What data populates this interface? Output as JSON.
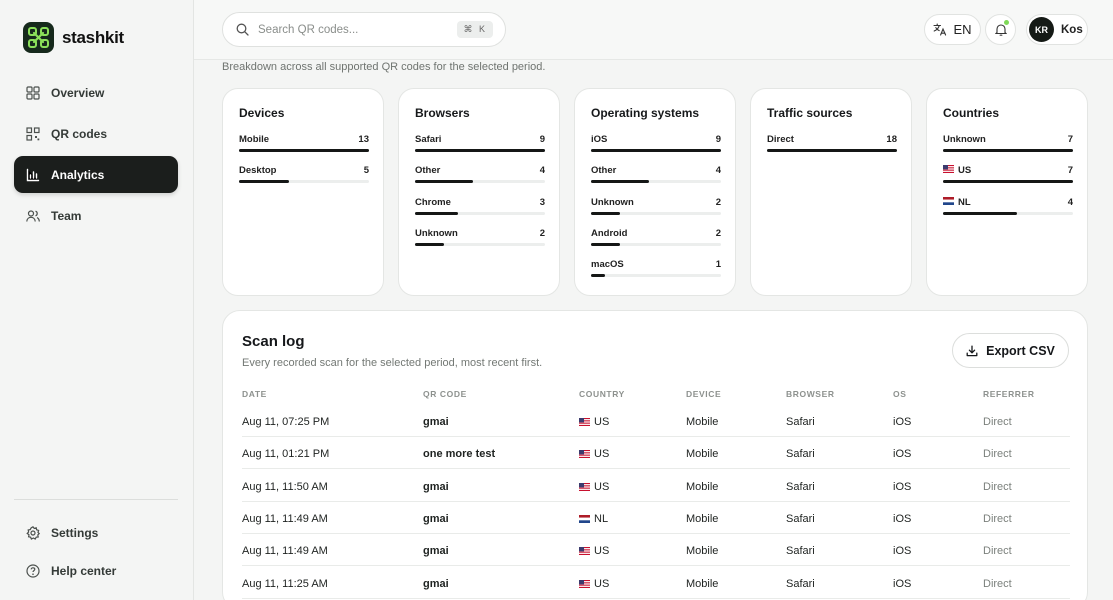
{
  "brand": {
    "name": "stashkit"
  },
  "sidebar": {
    "items": [
      {
        "label": "Overview",
        "icon": "grid-icon",
        "active": false
      },
      {
        "label": "QR codes",
        "icon": "qr-icon",
        "active": false
      },
      {
        "label": "Analytics",
        "icon": "bar-chart-icon",
        "active": true
      },
      {
        "label": "Team",
        "icon": "users-icon",
        "active": false
      }
    ],
    "bottom": [
      {
        "label": "Settings",
        "icon": "gear-icon"
      },
      {
        "label": "Help center",
        "icon": "help-icon"
      }
    ]
  },
  "topbar": {
    "search_placeholder": "Search QR codes...",
    "shortcut": "⌘ K",
    "language": "EN",
    "user_initials": "KR",
    "user_name": "Kos"
  },
  "breakdown": {
    "subtitle": "Breakdown across all supported QR codes for the selected period.",
    "cards": [
      {
        "title": "Devices",
        "items": [
          {
            "label": "Mobile",
            "value": 13
          },
          {
            "label": "Desktop",
            "value": 5
          }
        ]
      },
      {
        "title": "Browsers",
        "items": [
          {
            "label": "Safari",
            "value": 9
          },
          {
            "label": "Other",
            "value": 4
          },
          {
            "label": "Chrome",
            "value": 3
          },
          {
            "label": "Unknown",
            "value": 2
          }
        ]
      },
      {
        "title": "Operating systems",
        "items": [
          {
            "label": "iOS",
            "value": 9
          },
          {
            "label": "Other",
            "value": 4
          },
          {
            "label": "Unknown",
            "value": 2
          },
          {
            "label": "Android",
            "value": 2
          },
          {
            "label": "macOS",
            "value": 1
          }
        ]
      },
      {
        "title": "Traffic sources",
        "items": [
          {
            "label": "Direct",
            "value": 18
          }
        ]
      },
      {
        "title": "Countries",
        "items": [
          {
            "label": "Unknown",
            "value": 7,
            "flag": ""
          },
          {
            "label": "US",
            "value": 7,
            "flag": "us"
          },
          {
            "label": "NL",
            "value": 4,
            "flag": "nl"
          }
        ]
      }
    ]
  },
  "scan_log": {
    "title": "Scan log",
    "description": "Every recorded scan for the selected period, most recent first.",
    "export_label": "Export CSV",
    "columns": [
      "DATE",
      "QR CODE",
      "COUNTRY",
      "DEVICE",
      "BROWSER",
      "OS",
      "REFERRER"
    ],
    "rows": [
      {
        "date": "Aug 11, 07:25 PM",
        "qr": "gmai",
        "country": "US",
        "flag": "us",
        "device": "Mobile",
        "browser": "Safari",
        "os": "iOS",
        "referrer": "Direct"
      },
      {
        "date": "Aug 11, 01:21 PM",
        "qr": "one more test",
        "country": "US",
        "flag": "us",
        "device": "Mobile",
        "browser": "Safari",
        "os": "iOS",
        "referrer": "Direct"
      },
      {
        "date": "Aug 11, 11:50 AM",
        "qr": "gmai",
        "country": "US",
        "flag": "us",
        "device": "Mobile",
        "browser": "Safari",
        "os": "iOS",
        "referrer": "Direct"
      },
      {
        "date": "Aug 11, 11:49 AM",
        "qr": "gmai",
        "country": "NL",
        "flag": "nl",
        "device": "Mobile",
        "browser": "Safari",
        "os": "iOS",
        "referrer": "Direct"
      },
      {
        "date": "Aug 11, 11:49 AM",
        "qr": "gmai",
        "country": "US",
        "flag": "us",
        "device": "Mobile",
        "browser": "Safari",
        "os": "iOS",
        "referrer": "Direct"
      },
      {
        "date": "Aug 11, 11:25 AM",
        "qr": "gmai",
        "country": "US",
        "flag": "us",
        "device": "Mobile",
        "browser": "Safari",
        "os": "iOS",
        "referrer": "Direct"
      }
    ]
  },
  "colors": {
    "accent_dark": "#16291c",
    "logo_green": "#8be05a",
    "bar": "#151716",
    "track": "#eceeed"
  }
}
